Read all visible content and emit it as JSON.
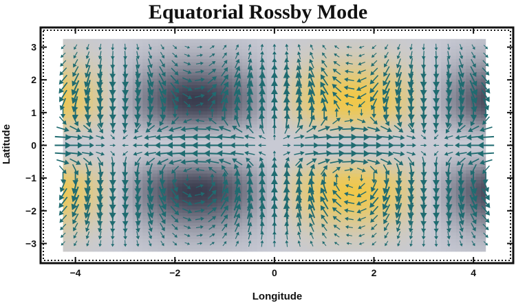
{
  "chart_data": {
    "type": "heatmap",
    "title": "Equatorial Rossby Mode",
    "xlabel": "Longitude",
    "ylabel": "Latitude",
    "xlim": [
      -4.7,
      4.8
    ],
    "ylim": [
      -3.6,
      3.6
    ],
    "x_ticks": [
      -4,
      -2,
      0,
      2,
      4
    ],
    "y_ticks": [
      -3,
      -2,
      -1,
      0,
      1,
      2,
      3
    ],
    "x_tick_labels": [
      "−4",
      "−2",
      "0",
      "2",
      "4"
    ],
    "y_tick_labels": [
      "−3",
      "−2",
      "−1",
      "0",
      "1",
      "2",
      "3"
    ],
    "field_extent": {
      "x": [
        -4.25,
        4.25
      ],
      "y": [
        -3.25,
        3.25
      ]
    },
    "field": {
      "description_formula": "pressure ~ sin(x) * y^2 * exp(-y^2/2) (equatorial Rossby mode n=1)",
      "cell": [
        0.1,
        0.1
      ]
    },
    "vector_field": {
      "grid_spacing": [
        0.25,
        0.25
      ],
      "arrow_color": "#1f6b70"
    },
    "colors": {
      "low": "#3a3c4e",
      "mid": "#c8cad4",
      "high": "#f0c84a",
      "arrow": "#1f6b70",
      "frame": "#111111"
    },
    "grid": false
  }
}
